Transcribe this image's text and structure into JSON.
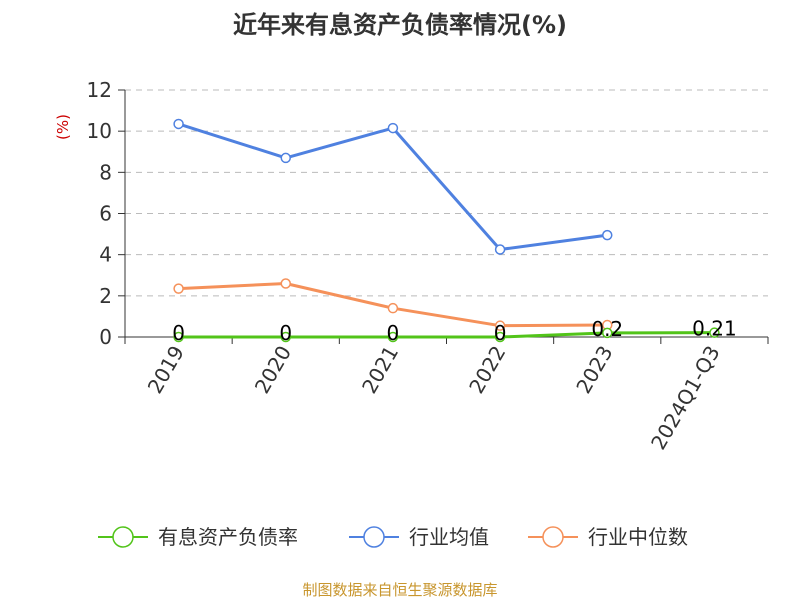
{
  "chart_data": {
    "type": "line",
    "title": "近年来有息资产负债率情况(%)",
    "ylabel": "(%)",
    "xlabel": "",
    "categories": [
      "2019",
      "2020",
      "2021",
      "2022",
      "2023",
      "2024Q1-Q3"
    ],
    "ylim": [
      0,
      12
    ],
    "yticks": [
      0,
      2,
      4,
      6,
      8,
      10,
      12
    ],
    "grid": true,
    "legend_position": "bottom",
    "series": [
      {
        "name": "有息资产负债率",
        "color": "#52c41a",
        "values": [
          0,
          0,
          0,
          0,
          0.2,
          0.21
        ],
        "labels": [
          "0",
          "0",
          "0",
          "0",
          "0.2",
          "0.21"
        ]
      },
      {
        "name": "行业均值",
        "color": "#4f81e0",
        "values": [
          10.35,
          8.7,
          10.15,
          4.25,
          4.95,
          null
        ]
      },
      {
        "name": "行业中位数",
        "color": "#f5915a",
        "values": [
          2.35,
          2.6,
          1.4,
          0.55,
          0.58,
          null
        ]
      }
    ]
  },
  "source": "制图数据来自恒生聚源数据库"
}
